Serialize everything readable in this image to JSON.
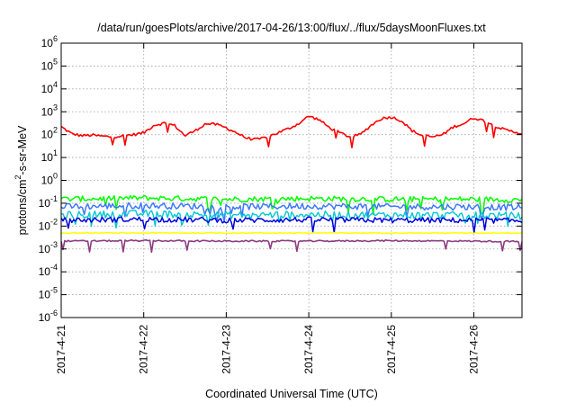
{
  "chart_data": {
    "type": "line",
    "title": "/data/run/goesPlots/archive/2017-04-26/13:00/flux/../flux/5daysMoonFluxes.txt",
    "xlabel": "Coordinated Universal Time (UTC)",
    "ylabel": "protons/cm²-s-sr-MeV",
    "ylabel_parts": [
      "protons/cm",
      "2",
      "-s-sr-MeV"
    ],
    "xscale": "time",
    "yscale": "log",
    "xlim": [
      "2017-04-21",
      "2017-04-26 14:00"
    ],
    "ylim": [
      1e-06,
      1000000.0
    ],
    "x_ticks": [
      "2017-4-21",
      "2017-4-22",
      "2017-4-23",
      "2017-4-24",
      "2017-4-25",
      "2017-4-26"
    ],
    "y_ticks": [
      {
        "value": 1e-06,
        "base": "10",
        "exp": "-6"
      },
      {
        "value": 1e-05,
        "base": "10",
        "exp": "-5"
      },
      {
        "value": 0.0001,
        "base": "10",
        "exp": "-4"
      },
      {
        "value": 0.001,
        "base": "10",
        "exp": "-3"
      },
      {
        "value": 0.01,
        "base": "10",
        "exp": "-2"
      },
      {
        "value": 0.1,
        "base": "10",
        "exp": "-1"
      },
      {
        "value": 1,
        "base": "10",
        "exp": "0"
      },
      {
        "value": 10,
        "base": "10",
        "exp": "1"
      },
      {
        "value": 100,
        "base": "10",
        "exp": "2"
      },
      {
        "value": 1000,
        "base": "10",
        "exp": "3"
      },
      {
        "value": 10000,
        "base": "10",
        "exp": "4"
      },
      {
        "value": 100000,
        "base": "10",
        "exp": "5"
      },
      {
        "value": 1000000,
        "base": "10",
        "exp": "6"
      }
    ],
    "grid": true,
    "legend": "none",
    "series": [
      {
        "color": "#ff0000",
        "x": [
          "2017-04-21 00:00",
          "2017-04-21 03:00",
          "2017-04-21 06:00",
          "2017-04-21 09:00",
          "2017-04-21 12:00",
          "2017-04-21 15:00",
          "2017-04-21 18:00",
          "2017-04-21 21:00",
          "2017-04-22 00:00",
          "2017-04-22 03:00",
          "2017-04-22 06:00",
          "2017-04-22 09:00",
          "2017-04-22 12:00",
          "2017-04-22 15:00",
          "2017-04-22 18:00",
          "2017-04-22 21:00",
          "2017-04-23 00:00",
          "2017-04-23 03:00",
          "2017-04-23 06:00",
          "2017-04-23 09:00",
          "2017-04-23 12:00",
          "2017-04-23 15:00",
          "2017-04-23 18:00",
          "2017-04-23 21:00",
          "2017-04-24 00:00",
          "2017-04-24 03:00",
          "2017-04-24 06:00",
          "2017-04-24 09:00",
          "2017-04-24 12:00",
          "2017-04-24 15:00",
          "2017-04-24 18:00",
          "2017-04-24 21:00",
          "2017-04-25 00:00",
          "2017-04-25 03:00",
          "2017-04-25 06:00",
          "2017-04-25 09:00",
          "2017-04-25 12:00",
          "2017-04-25 15:00",
          "2017-04-25 18:00",
          "2017-04-25 21:00",
          "2017-04-26 00:00",
          "2017-04-26 03:00",
          "2017-04-26 06:00",
          "2017-04-26 09:00",
          "2017-04-26 12:00",
          "2017-04-26 14:00"
        ],
        "y": [
          220,
          110,
          90,
          95,
          85,
          80,
          90,
          100,
          120,
          260,
          320,
          250,
          90,
          150,
          300,
          280,
          200,
          120,
          70,
          60,
          80,
          120,
          180,
          300,
          650,
          450,
          200,
          120,
          80,
          100,
          250,
          500,
          600,
          400,
          150,
          90,
          80,
          100,
          220,
          300,
          550,
          400,
          250,
          160,
          130,
          110
        ]
      },
      {
        "color": "#00ff00",
        "x": [
          "2017-04-21 00:00",
          "2017-04-22 00:00",
          "2017-04-23 00:00",
          "2017-04-24 00:00",
          "2017-04-25 00:00",
          "2017-04-26 00:00",
          "2017-04-26 14:00"
        ],
        "y": [
          0.15,
          0.17,
          0.15,
          0.16,
          0.15,
          0.15,
          0.14
        ]
      },
      {
        "color": "#3c78ff",
        "x": [
          "2017-04-21 00:00",
          "2017-04-22 00:00",
          "2017-04-23 00:00",
          "2017-04-24 00:00",
          "2017-04-25 00:00",
          "2017-04-26 00:00",
          "2017-04-26 14:00"
        ],
        "y": [
          0.07,
          0.08,
          0.07,
          0.075,
          0.07,
          0.07,
          0.065
        ]
      },
      {
        "color": "#00c8d0",
        "x": [
          "2017-04-21 00:00",
          "2017-04-22 00:00",
          "2017-04-23 00:00",
          "2017-04-24 00:00",
          "2017-04-25 00:00",
          "2017-04-26 00:00",
          "2017-04-26 14:00"
        ],
        "y": [
          0.03,
          0.035,
          0.03,
          0.032,
          0.03,
          0.03,
          0.028
        ]
      },
      {
        "color": "#0000dd",
        "x": [
          "2017-04-21 00:00",
          "2017-04-22 00:00",
          "2017-04-23 00:00",
          "2017-04-24 00:00",
          "2017-04-25 00:00",
          "2017-04-26 00:00",
          "2017-04-26 14:00"
        ],
        "y": [
          0.018,
          0.02,
          0.018,
          0.019,
          0.018,
          0.018,
          0.017
        ]
      },
      {
        "color": "#ffff00",
        "x": [
          "2017-04-21 00:00",
          "2017-04-22 00:00",
          "2017-04-23 00:00",
          "2017-04-24 00:00",
          "2017-04-25 00:00",
          "2017-04-26 00:00",
          "2017-04-26 14:00"
        ],
        "y": [
          0.005,
          0.005,
          0.005,
          0.005,
          0.005,
          0.005,
          0.005
        ]
      },
      {
        "color": "#8c3c82",
        "x": [
          "2017-04-21 00:00",
          "2017-04-22 00:00",
          "2017-04-23 00:00",
          "2017-04-24 00:00",
          "2017-04-25 00:00",
          "2017-04-26 00:00",
          "2017-04-26 14:00"
        ],
        "y": [
          0.0022,
          0.0023,
          0.0022,
          0.0022,
          0.0023,
          0.0022,
          0.0021
        ]
      }
    ]
  }
}
